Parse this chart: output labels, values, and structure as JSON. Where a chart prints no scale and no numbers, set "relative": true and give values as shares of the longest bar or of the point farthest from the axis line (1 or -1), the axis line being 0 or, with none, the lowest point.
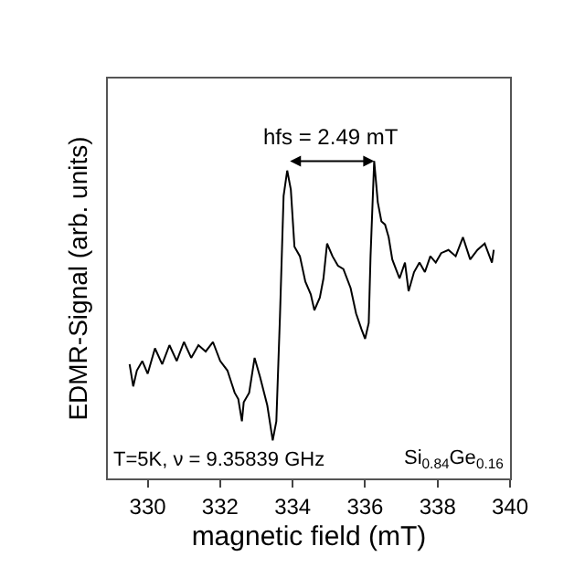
{
  "chart_data": {
    "type": "line",
    "xlabel": "magnetic field (mT)",
    "ylabel": "EDMR-Signal (arb. units)",
    "relative": true,
    "xlim": [
      328.9,
      340
    ],
    "xticks": [
      330,
      332,
      334,
      336,
      338,
      340
    ],
    "grid": false,
    "marker": "none",
    "line_style": "solid",
    "annotations": [
      "hfs = 2.49 mT",
      "T=5K, ν = 9.35839 GHz",
      "Si$_{0.84}$Ge$_{0.16}$"
    ],
    "series": [
      {
        "color": "#000000",
        "x": [
          329.5,
          329.6,
          329.7,
          329.85,
          330.0,
          330.2,
          330.4,
          330.6,
          330.8,
          331.0,
          331.2,
          331.4,
          331.6,
          331.8,
          332.0,
          332.2,
          332.4,
          332.5,
          332.6,
          332.65,
          332.8,
          332.95,
          333.1,
          333.3,
          333.45,
          333.55,
          333.65,
          333.75,
          333.85,
          333.95,
          334.05,
          334.2,
          334.35,
          334.5,
          334.6,
          334.75,
          334.85,
          334.95,
          335.1,
          335.25,
          335.4,
          335.6,
          335.75,
          335.9,
          336.0,
          336.1,
          336.15,
          336.25,
          336.35,
          336.45,
          336.55,
          336.65,
          336.75,
          336.85,
          336.95,
          337.1,
          337.2,
          337.35,
          337.5,
          337.65,
          337.8,
          337.95,
          338.1,
          338.3,
          338.5,
          338.7,
          338.9,
          339.1,
          339.3,
          339.5,
          339.55
        ],
        "values": [
          0.36,
          0.29,
          0.34,
          0.37,
          0.33,
          0.41,
          0.36,
          0.42,
          0.37,
          0.43,
          0.38,
          0.42,
          0.4,
          0.43,
          0.37,
          0.34,
          0.27,
          0.25,
          0.18,
          0.24,
          0.27,
          0.38,
          0.32,
          0.23,
          0.12,
          0.18,
          0.51,
          0.89,
          0.97,
          0.91,
          0.73,
          0.7,
          0.62,
          0.58,
          0.53,
          0.57,
          0.63,
          0.74,
          0.7,
          0.67,
          0.66,
          0.6,
          0.52,
          0.47,
          0.44,
          0.49,
          0.7,
          1,
          0.87,
          0.81,
          0.8,
          0.76,
          0.69,
          0.66,
          0.63,
          0.68,
          0.59,
          0.65,
          0.68,
          0.65,
          0.7,
          0.68,
          0.71,
          0.72,
          0.7,
          0.76,
          0.69,
          0.72,
          0.74,
          0.68,
          0.72
        ]
      }
    ]
  }
}
